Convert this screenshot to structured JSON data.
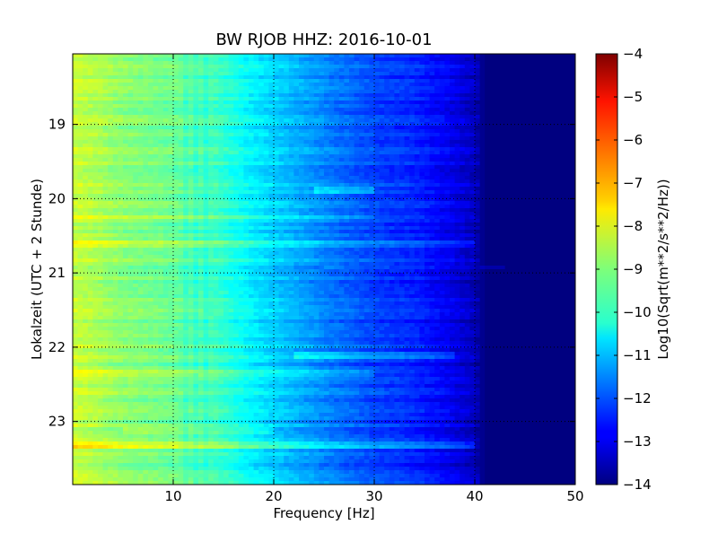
{
  "chart_data": {
    "type": "heatmap",
    "title": "BW RJOB HHZ: 2016-10-01",
    "xlabel": "Frequency [Hz]",
    "ylabel": "Lokalzeit (UTC + 2 Stunde)",
    "colorbar_label": "Log10(Sqrt(m**2/s**2/Hz))",
    "xlim": [
      0,
      50
    ],
    "ylim": [
      18.05,
      23.85
    ],
    "y_inverted": true,
    "x_ticks": [
      "10",
      "20",
      "30",
      "40",
      "50"
    ],
    "x_tick_values": [
      10,
      20,
      30,
      40,
      50
    ],
    "y_ticks": [
      "19",
      "20",
      "21",
      "22",
      "23"
    ],
    "y_tick_values": [
      19,
      20,
      21,
      22,
      23
    ],
    "color_range": [
      -14,
      -4
    ],
    "colorbar_ticks": [
      "−4",
      "−5",
      "−6",
      "−7",
      "−8",
      "−9",
      "−10",
      "−11",
      "−12",
      "−13",
      "−14"
    ],
    "colorbar_tick_values": [
      -4,
      -5,
      -6,
      -7,
      -8,
      -9,
      -10,
      -11,
      -12,
      -13,
      -14
    ],
    "colormap": "jet",
    "grid": true,
    "frequency_profile": {
      "frequency": [
        0,
        2,
        5,
        10,
        14,
        18,
        22,
        26,
        30,
        34,
        38,
        40,
        41,
        50
      ],
      "value": [
        -8.3,
        -8.5,
        -8.9,
        -9.2,
        -9.6,
        -10.4,
        -11.0,
        -11.6,
        -12.1,
        -12.4,
        -13.0,
        -13.4,
        -14.0,
        -14.0
      ]
    },
    "bright_bands": [
      {
        "time": 20.6,
        "fmin": 0,
        "fmax": 40,
        "delta": 0.6
      },
      {
        "time": 20.25,
        "fmin": 0,
        "fmax": 30,
        "delta": 0.4
      },
      {
        "time": 22.1,
        "fmin": 22,
        "fmax": 38,
        "delta": 0.7
      },
      {
        "time": 19.9,
        "fmin": 24,
        "fmax": 30,
        "delta": 0.8
      },
      {
        "time": 23.32,
        "fmin": 0,
        "fmax": 40,
        "delta": 0.9
      },
      {
        "time": 22.35,
        "fmin": 0,
        "fmax": 30,
        "delta": 0.5
      },
      {
        "time": 23.12,
        "fmin": 5,
        "fmax": 20,
        "delta": 0.5
      },
      {
        "time": 20.92,
        "fmin": 25,
        "fmax": 43,
        "delta": 0.4
      }
    ],
    "colors": {
      "frame": "#000000",
      "grid": "#000000",
      "background": "#ffffff"
    }
  }
}
